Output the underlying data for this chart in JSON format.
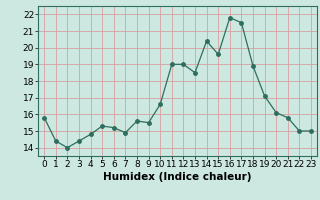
{
  "x": [
    0,
    1,
    2,
    3,
    4,
    5,
    6,
    7,
    8,
    9,
    10,
    11,
    12,
    13,
    14,
    15,
    16,
    17,
    18,
    19,
    20,
    21,
    22,
    23
  ],
  "y": [
    15.8,
    14.4,
    14.0,
    14.4,
    14.8,
    15.3,
    15.2,
    14.9,
    15.6,
    15.5,
    16.6,
    19.0,
    19.0,
    18.5,
    20.4,
    19.6,
    21.8,
    21.5,
    18.9,
    17.1,
    16.1,
    15.8,
    15.0,
    15.0
  ],
  "xlabel": "Humidex (Indice chaleur)",
  "xlim": [
    -0.5,
    23.5
  ],
  "ylim": [
    13.5,
    22.5
  ],
  "yticks": [
    14,
    15,
    16,
    17,
    18,
    19,
    20,
    21,
    22
  ],
  "xticks": [
    0,
    1,
    2,
    3,
    4,
    5,
    6,
    7,
    8,
    9,
    10,
    11,
    12,
    13,
    14,
    15,
    16,
    17,
    18,
    19,
    20,
    21,
    22,
    23
  ],
  "line_color": "#2e6e5e",
  "marker": "o",
  "marker_size": 2.5,
  "bg_color": "#cce8e0",
  "grid_color": "#b0d0c8",
  "xlabel_fontsize": 7.5,
  "tick_fontsize": 6.5
}
